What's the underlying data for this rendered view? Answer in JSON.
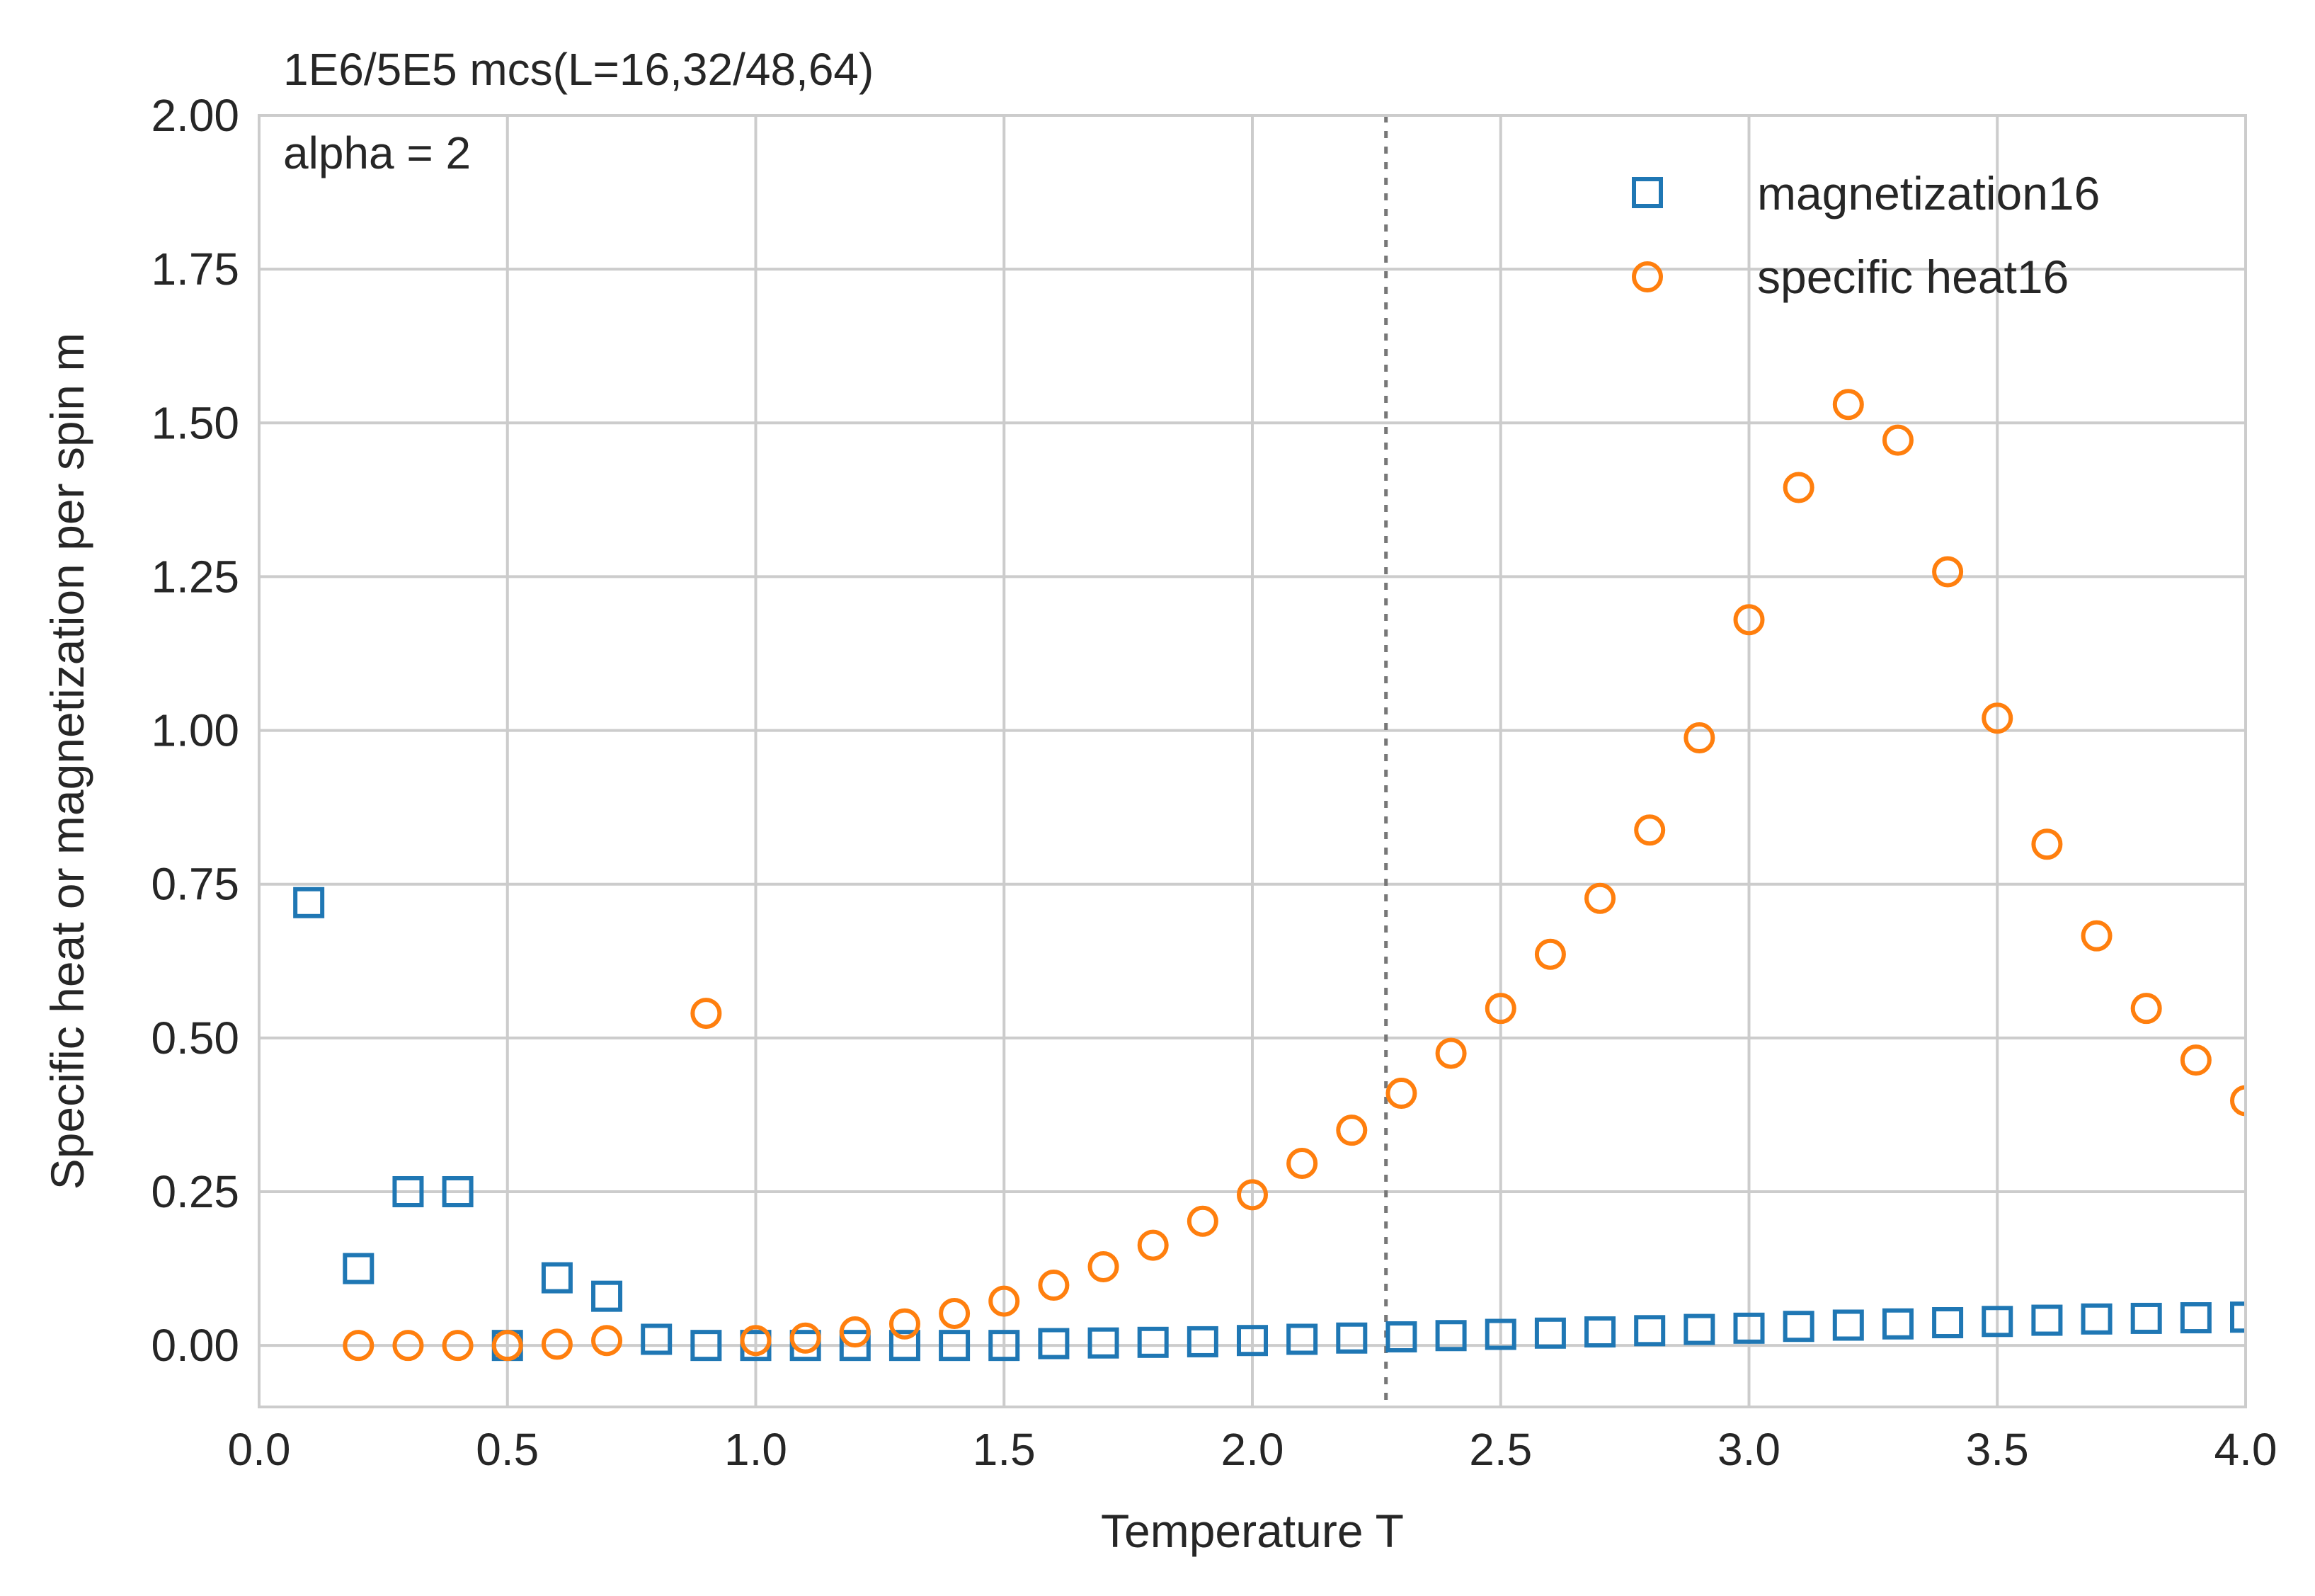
{
  "chart_data": {
    "type": "scatter",
    "title": "1E6/5E5 mcs(L=16,32/48,64)",
    "annotation": "alpha = 2",
    "xlabel": "Temperature T",
    "ylabel": "Specific heat or magnetization per spin m",
    "xlim": [
      0.0,
      4.0
    ],
    "ylim": [
      -0.1,
      2.0
    ],
    "xticks": [
      "0.0",
      "0.5",
      "1.0",
      "1.5",
      "2.0",
      "2.5",
      "3.0",
      "3.5",
      "4.0"
    ],
    "yticks": [
      "0.00",
      "0.25",
      "0.50",
      "0.75",
      "1.00",
      "1.25",
      "1.50",
      "1.75",
      "2.00"
    ],
    "grid": true,
    "legend_position": "top-right",
    "vline": {
      "x": 2.269,
      "style": "dotted",
      "color": "#777777"
    },
    "series": [
      {
        "name": "magnetization16",
        "marker": "square",
        "color": "#1f77b4",
        "x": [
          0.1,
          0.2,
          0.3,
          0.4,
          0.5,
          0.6,
          0.7,
          0.8,
          0.9,
          1.0,
          1.1,
          1.2,
          1.3,
          1.4,
          1.5,
          1.6,
          1.7,
          1.8,
          1.9,
          2.0,
          2.1,
          2.2,
          2.3,
          2.4,
          2.5,
          2.6,
          2.7,
          2.8,
          2.9,
          3.0,
          3.1,
          3.2,
          3.3,
          3.4,
          3.5,
          3.6,
          3.7,
          3.8,
          3.9,
          4.0
        ],
        "y": [
          0.72,
          0.125,
          0.25,
          0.25,
          0.0,
          0.11,
          0.08,
          0.01,
          0.0,
          0.0,
          0.0,
          0.0,
          0.0,
          0.0,
          0.0,
          0.003,
          0.004,
          0.005,
          0.006,
          0.008,
          0.01,
          0.012,
          0.014,
          0.016,
          0.018,
          0.02,
          0.022,
          0.024,
          0.026,
          0.028,
          0.031,
          0.033,
          0.035,
          0.037,
          0.039,
          0.041,
          0.043,
          0.044,
          0.045,
          0.046
        ]
      },
      {
        "name": "specific heat16",
        "marker": "circle",
        "color": "#ff7f0e",
        "x": [
          0.2,
          0.3,
          0.4,
          0.5,
          0.6,
          0.7,
          0.9,
          1.0,
          1.1,
          1.2,
          1.3,
          1.4,
          1.5,
          1.6,
          1.7,
          1.8,
          1.9,
          2.0,
          2.1,
          2.2,
          2.3,
          2.4,
          2.5,
          2.6,
          2.7,
          2.8,
          2.9,
          3.0,
          3.1,
          3.2,
          3.3,
          3.4,
          3.5,
          3.6,
          3.7,
          3.8,
          3.9,
          4.0
        ],
        "y": [
          0.0,
          0.0,
          0.0,
          0.0,
          0.002,
          0.008,
          0.54,
          0.008,
          0.012,
          0.022,
          0.035,
          0.052,
          0.072,
          0.098,
          0.128,
          0.163,
          0.202,
          0.245,
          0.296,
          0.35,
          0.41,
          0.475,
          0.548,
          0.636,
          0.727,
          0.838,
          0.988,
          1.18,
          1.395,
          1.53,
          1.472,
          1.258,
          1.02,
          0.815,
          0.666,
          0.548,
          0.464,
          0.398
        ]
      }
    ]
  }
}
